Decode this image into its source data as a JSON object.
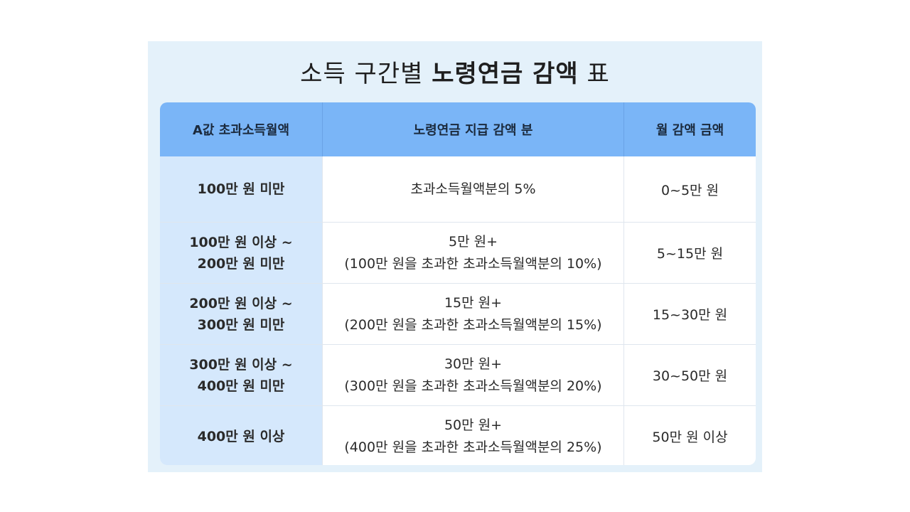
{
  "title": {
    "part1": "소득 구간별 ",
    "bold": "노령연금 감액",
    "part2": " 표"
  },
  "headers": [
    "A값 초과소득월액",
    "노령연금 지급 감액 분",
    "월 감액 금액"
  ],
  "rows": [
    {
      "range": [
        "100만 원 미만"
      ],
      "reduction": [
        "초과소득월액분의 5%"
      ],
      "amount": "0~5만 원"
    },
    {
      "range": [
        "100만 원 이상 ~",
        "200만 원 미만"
      ],
      "reduction": [
        "5만 원+",
        "(100만 원을 초과한 초과소득월액분의 10%)"
      ],
      "amount": "5~15만 원"
    },
    {
      "range": [
        "200만 원 이상 ~",
        "300만 원 미만"
      ],
      "reduction": [
        "15만 원+",
        "(200만 원을 초과한 초과소득월액분의 15%)"
      ],
      "amount": "15~30만 원"
    },
    {
      "range": [
        "300만 원 이상 ~",
        "400만 원 미만"
      ],
      "reduction": [
        "30만 원+",
        "(300만 원을 초과한 초과소득월액분의 20%)"
      ],
      "amount": "30~50만 원"
    },
    {
      "range": [
        "400만 원 이상"
      ],
      "reduction": [
        "50만 원+",
        "(400만 원을 초과한 초과소득월액분의 25%)"
      ],
      "amount": "50만 원 이상"
    }
  ],
  "colors": {
    "panel": "#e4f1fa",
    "header": "#7ab5f7",
    "first_col": "#d5e8fc"
  }
}
